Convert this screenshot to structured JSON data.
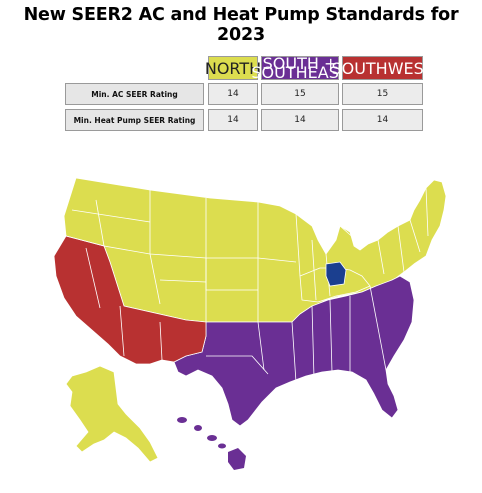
{
  "title": "New SEER2 AC and Heat Pump Standards for 2023",
  "colors": {
    "north": "#dcdd4f",
    "south_southeast": "#6a2f94",
    "southwest": "#b83131",
    "highlight": "#1b3f8f"
  },
  "table": {
    "headers": [
      "NORTH",
      "SOUTH + SOUTHEAST",
      "SOUTHWEST"
    ],
    "rows": [
      {
        "label": "Min. AC SEER Rating",
        "values": [
          "14",
          "15",
          "15"
        ]
      },
      {
        "label": "Min. Heat Pump SEER Rating",
        "values": [
          "14",
          "14",
          "14"
        ]
      }
    ]
  },
  "map": {
    "regions": [
      "north",
      "south_southeast",
      "southwest"
    ]
  }
}
